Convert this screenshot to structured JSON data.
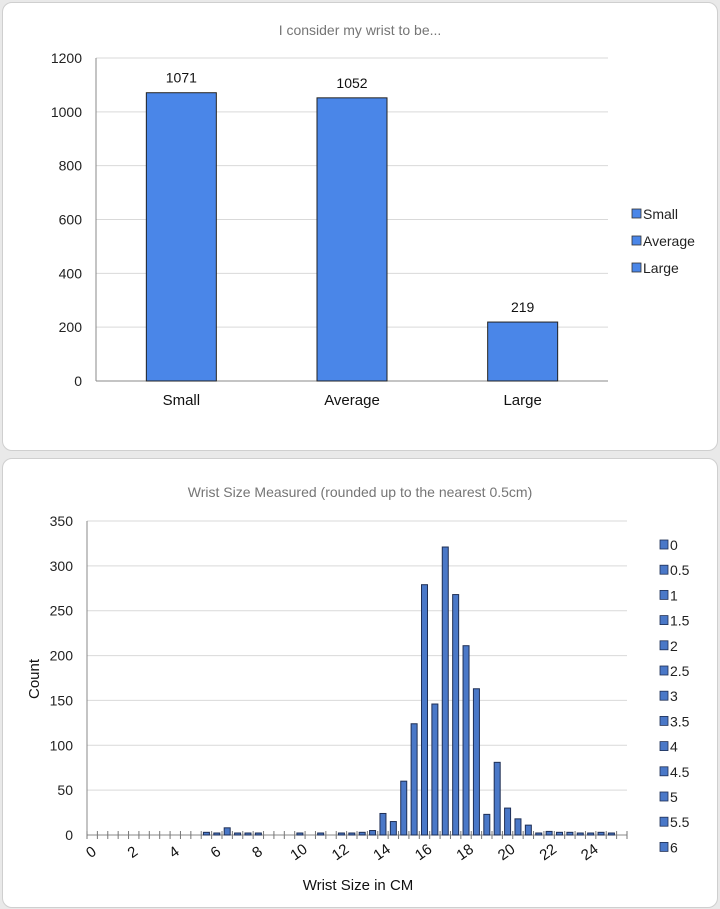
{
  "chart_data": [
    {
      "type": "bar",
      "title": "I consider my wrist to be...",
      "categories": [
        "Small",
        "Average",
        "Large"
      ],
      "values": [
        1071,
        1052,
        219
      ],
      "ylim": [
        0,
        1200
      ],
      "yticks": [
        0,
        200,
        400,
        600,
        800,
        1000,
        1200
      ],
      "legend": [
        "Small",
        "Average",
        "Large"
      ],
      "legend_position": "right",
      "grid": true,
      "color": "#4a86e8"
    },
    {
      "type": "bar",
      "title": "Wrist Size Measured (rounded up to the nearest 0.5cm)",
      "xlabel": "Wrist Size in CM",
      "ylabel": "Count",
      "ylim": [
        0,
        350
      ],
      "yticks": [
        0,
        50,
        100,
        150,
        200,
        250,
        300,
        350
      ],
      "xtick_labels": [
        "0",
        "2",
        "4",
        "6",
        "8",
        "10",
        "12",
        "14",
        "16",
        "18",
        "20",
        "22",
        "24"
      ],
      "x": [
        0,
        0.5,
        1,
        1.5,
        2,
        2.5,
        3,
        3.5,
        4,
        4.5,
        5,
        5.5,
        6,
        6.5,
        7,
        7.5,
        8,
        8.5,
        9,
        9.5,
        10,
        10.5,
        11,
        11.5,
        12,
        12.5,
        13,
        13.5,
        14,
        14.5,
        15,
        15.5,
        16,
        16.5,
        17,
        17.5,
        18,
        18.5,
        19,
        19.5,
        20,
        20.5,
        21,
        21.5,
        22,
        22.5,
        23,
        23.5,
        24,
        24.5,
        25,
        25.5
      ],
      "values": [
        0,
        0,
        0,
        0,
        0,
        0,
        0,
        0,
        0,
        0,
        0,
        3,
        1,
        8,
        2,
        2,
        1,
        0,
        0,
        0,
        1,
        0,
        1,
        0,
        1,
        1,
        3,
        5,
        24,
        15,
        60,
        124,
        279,
        146,
        321,
        268,
        211,
        163,
        23,
        81,
        30,
        18,
        11,
        1,
        4,
        3,
        3,
        1,
        2,
        3,
        1,
        0
      ],
      "legend": [
        "0",
        "0.5",
        "1",
        "1.5",
        "2",
        "2.5",
        "3",
        "3.5",
        "4",
        "4.5",
        "5",
        "5.5",
        "6"
      ],
      "legend_position": "right",
      "grid": true,
      "color": "#4a78c8"
    }
  ]
}
